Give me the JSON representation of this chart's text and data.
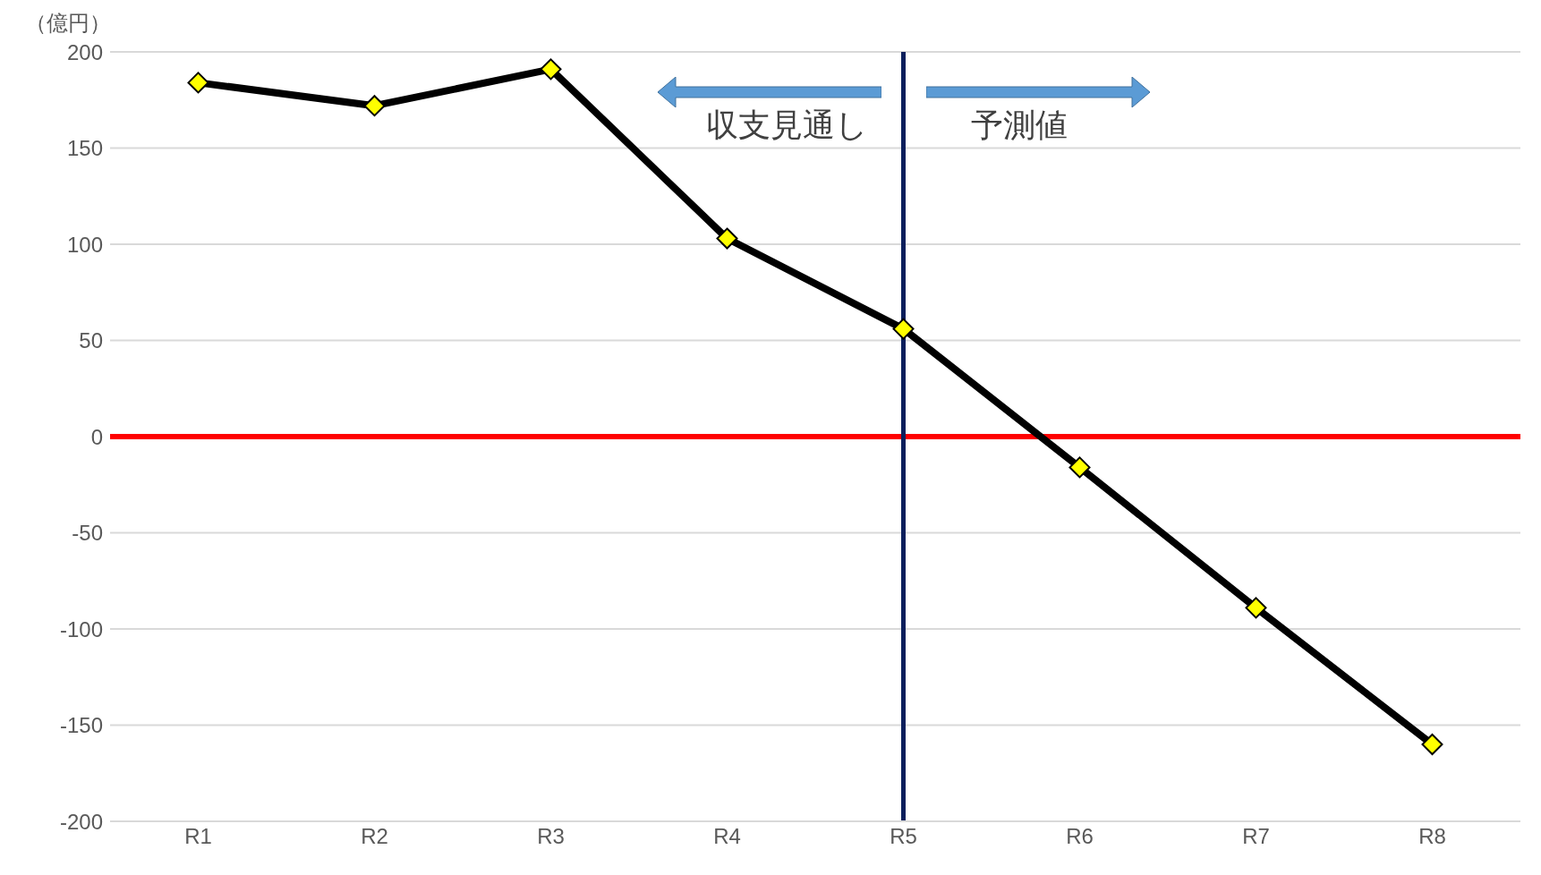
{
  "chart_data": {
    "type": "line",
    "ylabel": "（億円）",
    "categories": [
      "R1",
      "R2",
      "R3",
      "R4",
      "R5",
      "R6",
      "R7",
      "R8"
    ],
    "series": [
      {
        "color": "#000000",
        "values": [
          184,
          172,
          191,
          103,
          56,
          -16,
          -89,
          -160
        ]
      }
    ],
    "ylim": [
      -200,
      200
    ],
    "yticks": [
      -200,
      -150,
      -100,
      -50,
      0,
      50,
      100,
      150,
      200
    ],
    "grid": "y",
    "marker": "diamond",
    "ref_lines": [
      {
        "axis": "y",
        "value": 0,
        "color": "#ff0000"
      },
      {
        "axis": "x",
        "value": "R5",
        "color": "#0b1f5c"
      }
    ],
    "annotations": [
      "収支見通し",
      "予測値"
    ]
  }
}
